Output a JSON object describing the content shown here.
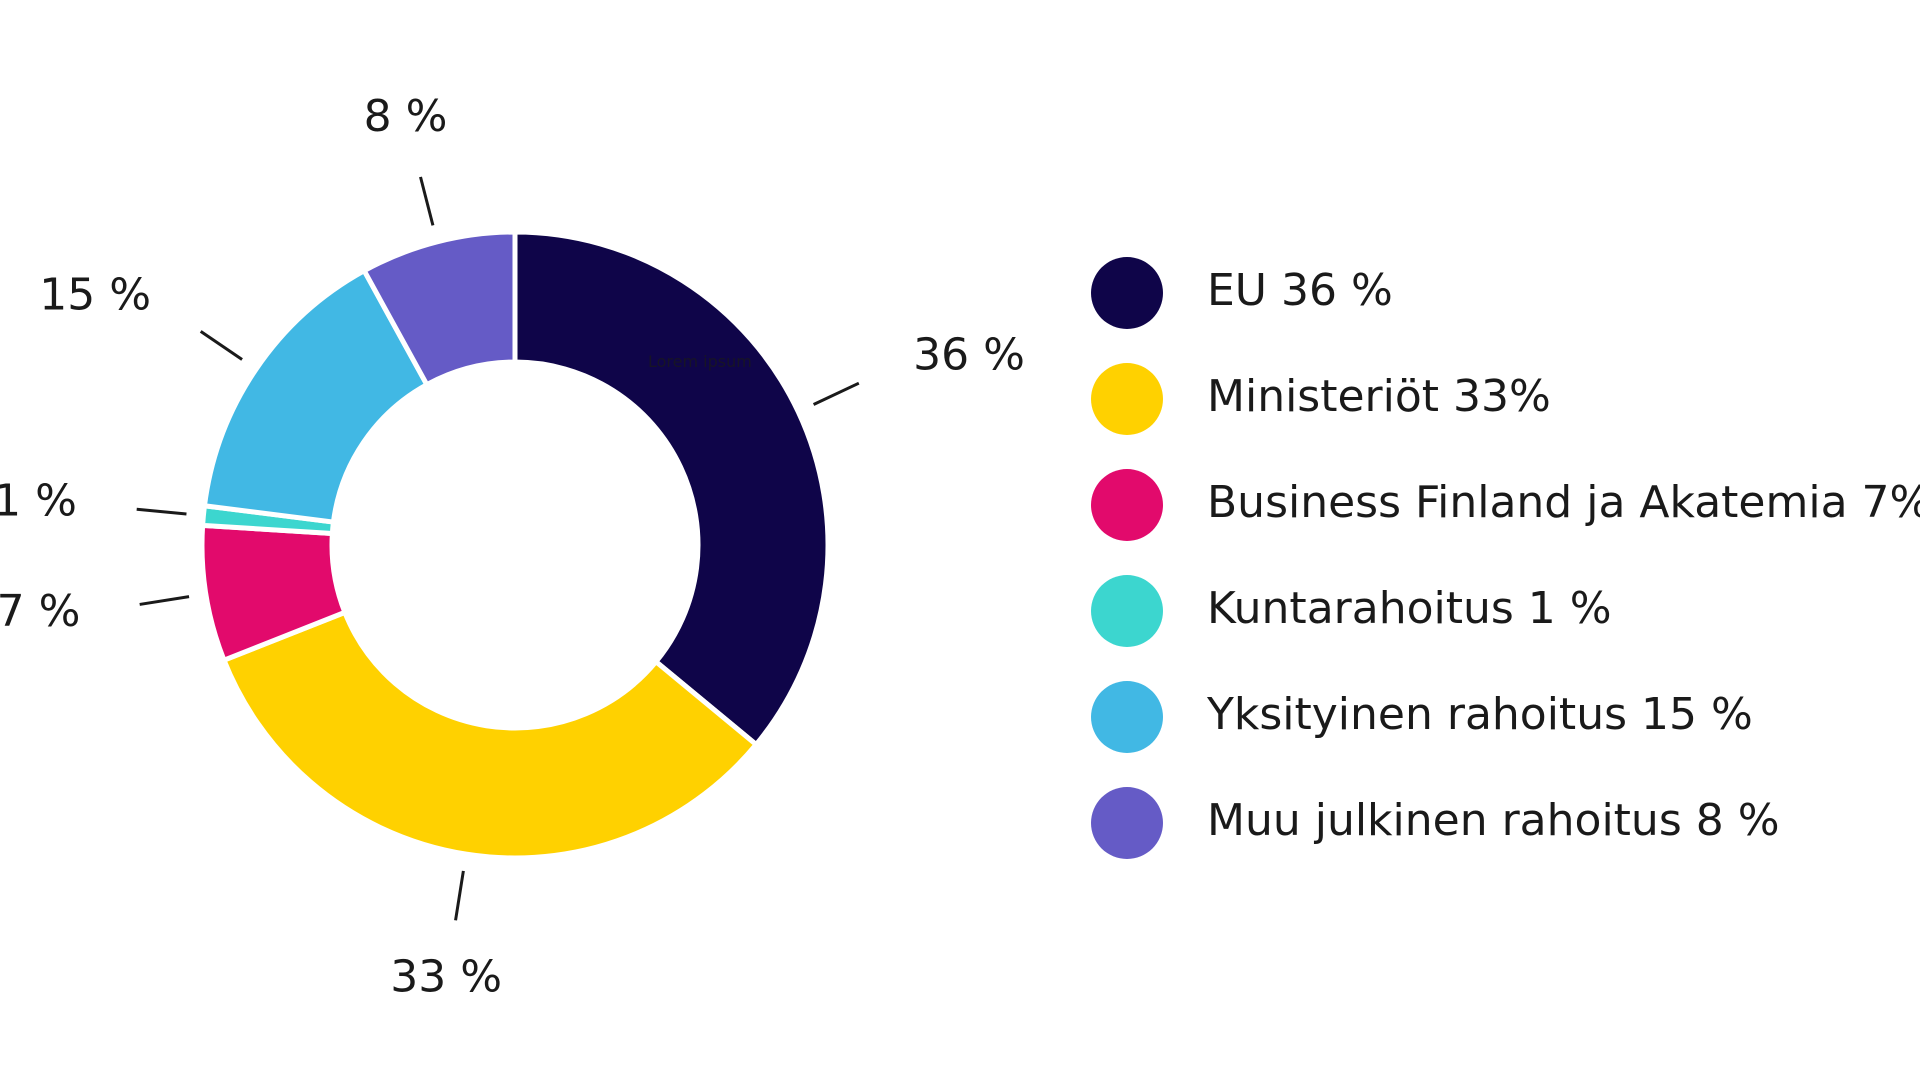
{
  "chart_data": {
    "type": "pie",
    "variant": "donut",
    "slices": [
      {
        "value": 36,
        "data_label": "36 %",
        "legend_label": "EU 36 %",
        "color": "#0f0549"
      },
      {
        "value": 33,
        "data_label": "33 %",
        "legend_label": "Ministeriöt 33%",
        "color": "#ffd100"
      },
      {
        "value": 7,
        "data_label": "7 %",
        "legend_label": "Business Finland ja Akatemia 7%",
        "color": "#e20a6c"
      },
      {
        "value": 1,
        "data_label": "1 %",
        "legend_label": "Kuntarahoitus 1 %",
        "color": "#3cd6cf"
      },
      {
        "value": 15,
        "data_label": "15 %",
        "legend_label": "Yksityinen rahoitus 15 %",
        "color": "#41b8e4"
      },
      {
        "value": 8,
        "data_label": "8 %",
        "legend_label": "Muu julkinen rahoitus 8 %",
        "color": "#655bc6"
      }
    ],
    "legend_position": "right",
    "annotation": "Lorem ipsum"
  }
}
